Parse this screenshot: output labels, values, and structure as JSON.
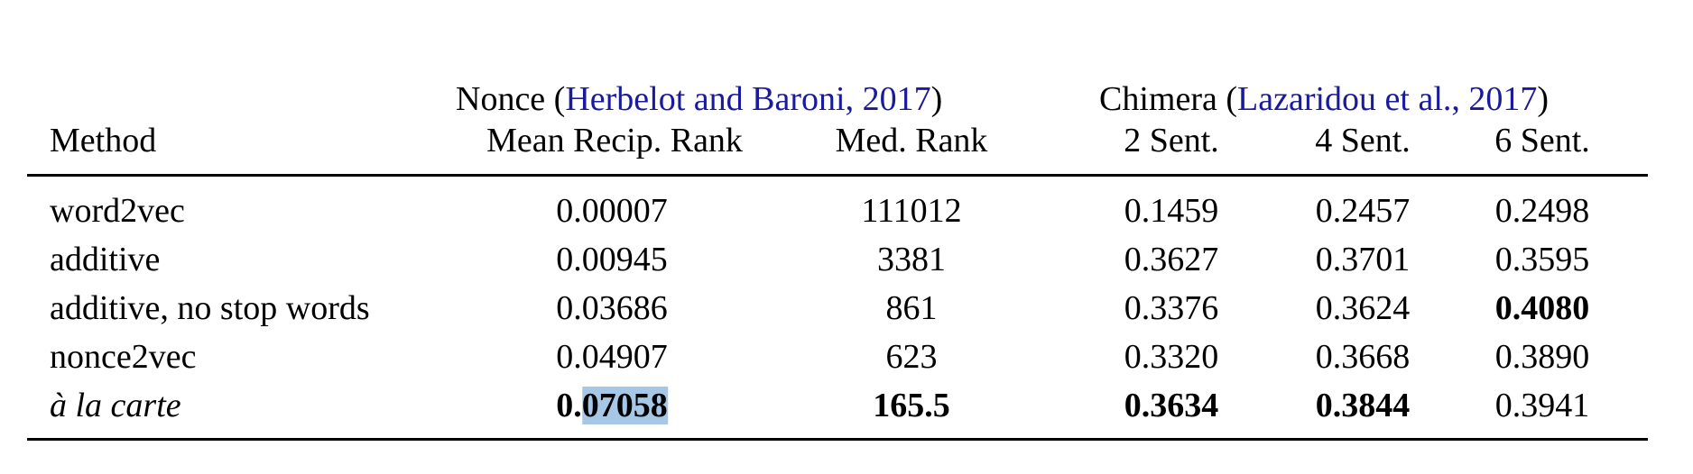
{
  "table": {
    "group_headers": {
      "nonce": {
        "label": "Nonce (",
        "citation": "Herbelot and Baroni, 2017",
        "close": ")"
      },
      "chimera": {
        "label": "Chimera (",
        "citation": "Lazaridou et al., 2017",
        "close": ")"
      }
    },
    "columns": [
      "Method",
      "Mean Recip. Rank",
      "Med. Rank",
      "2 Sent.",
      "4 Sent.",
      "6 Sent."
    ],
    "rows": [
      {
        "method": "word2vec",
        "values": [
          "0.00007",
          "111012",
          "0.1459",
          "0.2457",
          "0.2498"
        ]
      },
      {
        "method": "additive",
        "values": [
          "0.00945",
          "3381",
          "0.3627",
          "0.3701",
          "0.3595"
        ]
      },
      {
        "method": "additive, no stop words",
        "values": [
          "0.03686",
          "861",
          "0.3376",
          "0.3624",
          "0.4080"
        ]
      },
      {
        "method": "nonce2vec",
        "values": [
          "0.04907",
          "623",
          "0.3320",
          "0.3668",
          "0.3890"
        ]
      },
      {
        "method": "à la carte",
        "values": [
          "0.07058",
          "165.5",
          "0.3634",
          "0.3844",
          "0.3941"
        ]
      }
    ],
    "highlight": {
      "prefix": "0.",
      "selected": "07058"
    },
    "colors": {
      "citation": "#1a1a9c",
      "selection": "#a7c7e7"
    }
  }
}
